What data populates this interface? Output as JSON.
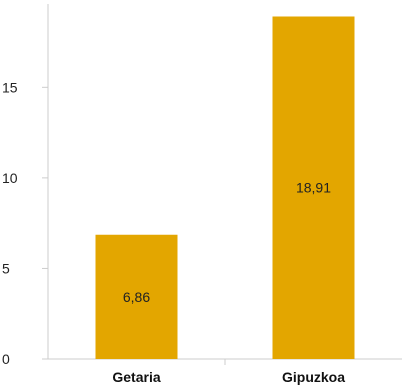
{
  "chart_data": {
    "type": "bar",
    "categories": [
      "Getaria",
      "Gipuzkoa"
    ],
    "values": [
      6.86,
      18.91
    ],
    "data_labels": [
      "6,86",
      "18,91"
    ],
    "y_ticks": [
      0,
      5,
      10,
      15
    ],
    "y_tick_labels": [
      "0",
      "5",
      "10",
      "15"
    ],
    "ylim": [
      0,
      19.6
    ],
    "bar_color": "#e3a600",
    "axis_color": "#cccccc",
    "grid": false,
    "title": "",
    "xlabel": "",
    "ylabel": ""
  }
}
